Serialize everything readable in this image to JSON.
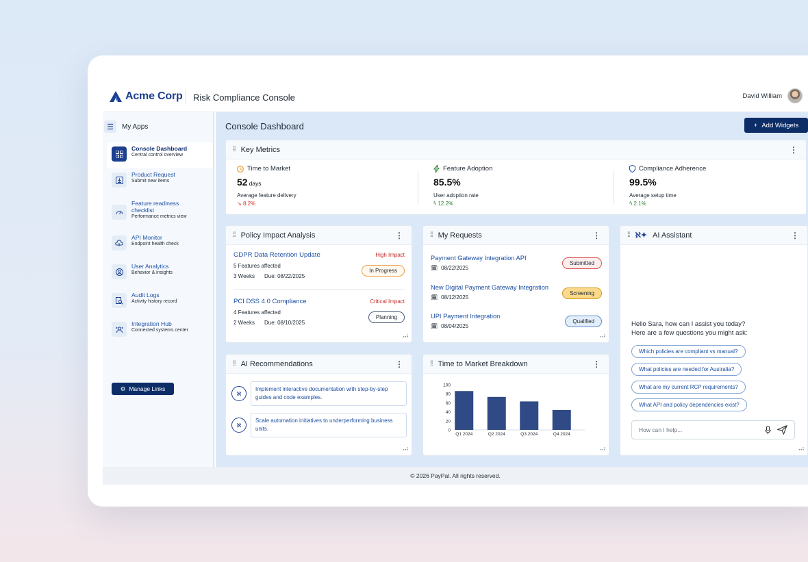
{
  "header": {
    "brand": "Acme Corp",
    "app_title": "Risk Compliance Console",
    "user_name": "David William"
  },
  "sidebar": {
    "myapps_label": "My Apps",
    "items": [
      {
        "title": "Console Dashboard",
        "subtitle": "Central control overview",
        "icon": "grid-icon"
      },
      {
        "title": "Product Request",
        "subtitle": "Submit new items",
        "icon": "download-box-icon"
      },
      {
        "title": "Feature readiness",
        "title2": "checklist",
        "subtitle": "Performance metrics view",
        "icon": "gauge-icon"
      },
      {
        "title": "API Monitor",
        "subtitle": "Endpoint health check",
        "icon": "cloud-icon"
      },
      {
        "title": "User Analytics",
        "subtitle": "Behavior & insights",
        "icon": "user-circle-icon"
      },
      {
        "title": "Audit Logs",
        "subtitle": "Activity history record",
        "icon": "document-search-icon"
      },
      {
        "title": "Integration Hub",
        "subtitle": "Connected systems center",
        "icon": "hub-icon"
      }
    ],
    "manage_links": "Manage Links"
  },
  "dashboard": {
    "title": "Console Dashboard",
    "add_widgets": "Add Widgets"
  },
  "key_metrics": {
    "title": "Key Metrics",
    "items": [
      {
        "label": "Time to Market",
        "value": "52",
        "unit": "days",
        "desc": "Average feature delivery",
        "delta": "8.2%",
        "trend": "down",
        "color": "#d32f2f"
      },
      {
        "label": "Feature Adoption",
        "value": "85.5%",
        "unit": "",
        "desc": "User adoption rate",
        "delta": "12.2%",
        "trend": "up",
        "color": "#2e7d32"
      },
      {
        "label": "Compliance Adherence",
        "value": "99.5%",
        "unit": "",
        "desc": "Average setup time",
        "delta": "2.1%",
        "trend": "up",
        "color": "#2e7d32"
      }
    ]
  },
  "policy": {
    "title": "Policy Impact Analysis",
    "items": [
      {
        "title": "GDPR Data Retention Update",
        "impact": "High Impact",
        "features": "5 Features affected",
        "duration": "3 Weeks",
        "due": "Due: 08/22/2025",
        "status": "In Progress"
      },
      {
        "title": "PCI DSS 4.0 Compliance",
        "impact": "Critical Impact",
        "features": "4 Features affected",
        "duration": "2 Weeks",
        "due": "Due: 08/10/2025",
        "status": "Planning"
      }
    ]
  },
  "requests": {
    "title": "My Requests",
    "items": [
      {
        "title": "Payment Gateway Integration API",
        "date": "08/22/2025",
        "status": "Submitted"
      },
      {
        "title": "New Digital Payment Gateway Integration",
        "date": "08/12/2025",
        "status": "Screening"
      },
      {
        "title": "UPI Payment Integration",
        "date": "08/04/2025",
        "status": "Qualified"
      }
    ]
  },
  "ai_assistant": {
    "title": "AI Assistant",
    "greeting_1": "Hello Sara, how can I assist you today?",
    "greeting_2": "Here are a few questions you might ask:",
    "questions": [
      "Which policies are compliant vs manual?",
      "What policies are needed for Australia?",
      "What are my current RCP requirements?",
      "What API and policy dependencies exist?"
    ],
    "placeholder": "How can I help..."
  },
  "recommendations": {
    "title": "AI Recommendations",
    "items": [
      "Implement interactive documentation with step-by-step guides and code examples.",
      "Scale automation initiatives to underperforming business units."
    ]
  },
  "breakdown": {
    "title": "Time to Market Breakdown"
  },
  "chart_data": {
    "type": "bar",
    "categories": [
      "Q1 2024",
      "Q2 2024",
      "Q3 2024",
      "Q4 2024"
    ],
    "values": [
      86,
      73,
      63,
      44
    ],
    "ylim": [
      0,
      100
    ],
    "yticks": [
      "100",
      "80",
      "60",
      "40",
      "20",
      "0"
    ],
    "color": "#2f4a85",
    "grid": false
  },
  "footer": {
    "copyright": "© 2026 PayPal. All rights reserved."
  }
}
